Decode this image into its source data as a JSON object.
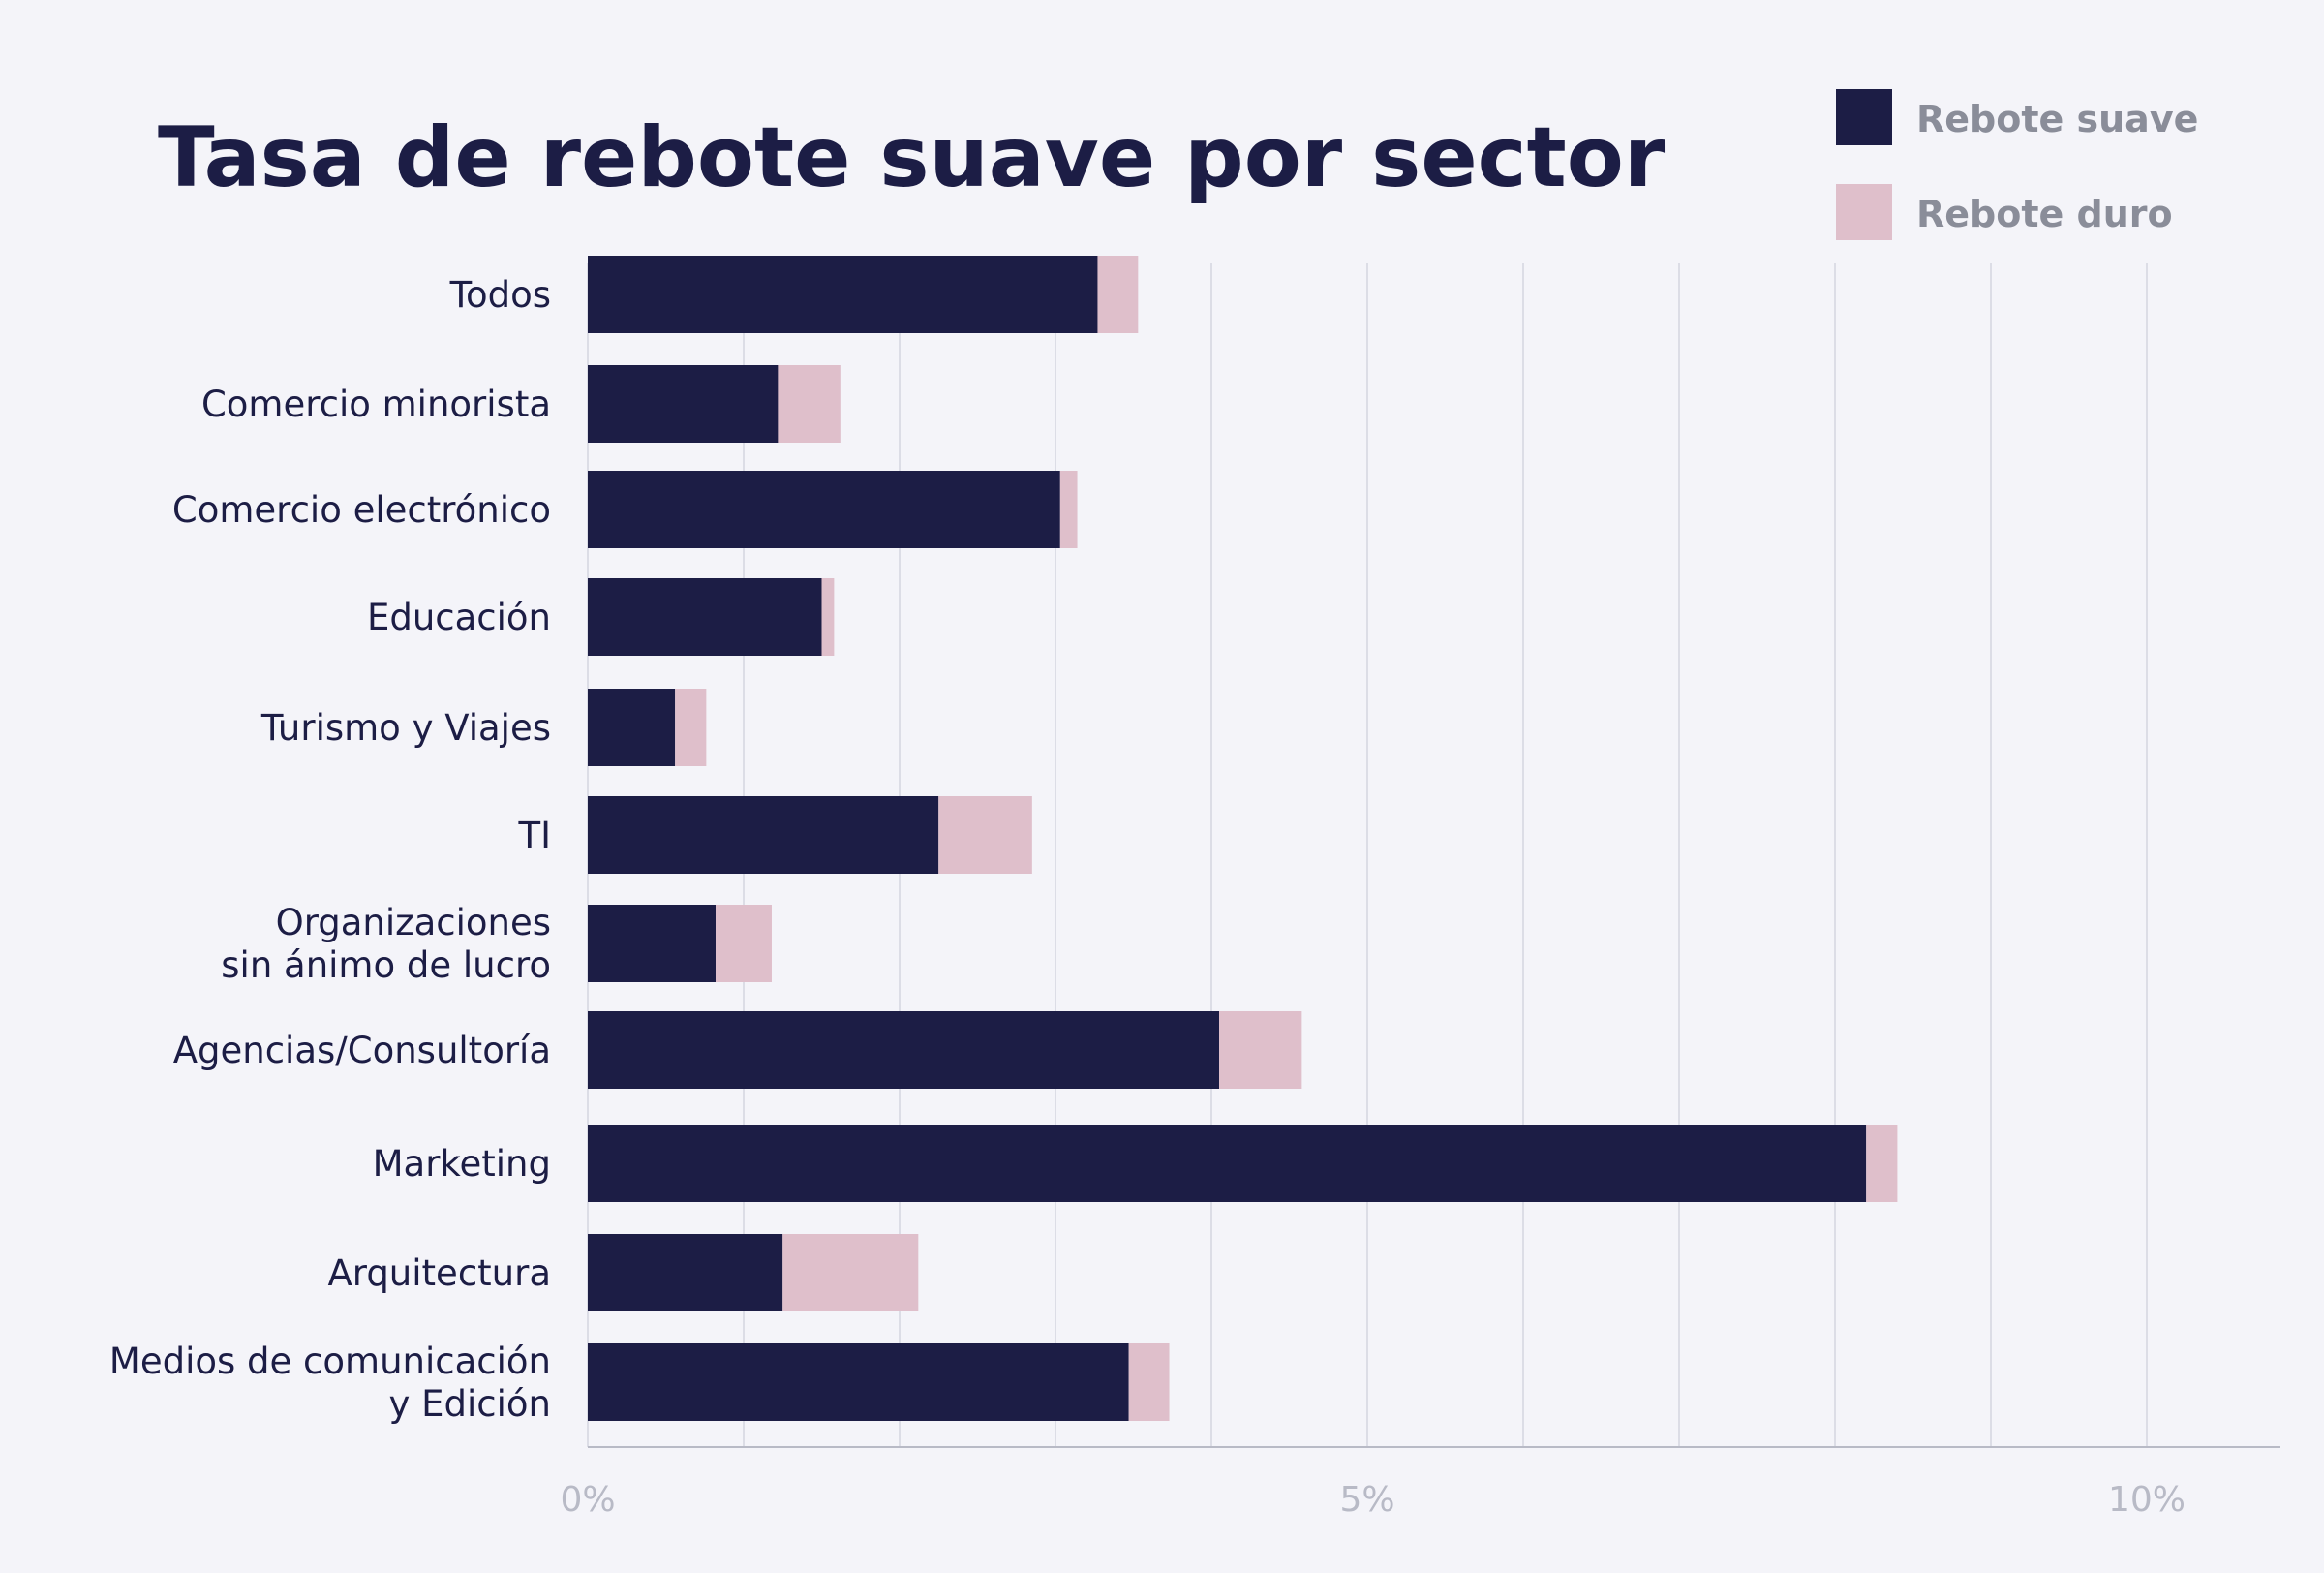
{
  "chart_data": {
    "type": "bar",
    "orientation": "horizontal",
    "stacked": true,
    "title": "Tasa de rebote suave por sector",
    "categories": [
      [
        "Todos"
      ],
      [
        "Comercio minorista"
      ],
      [
        "Comercio electrónico"
      ],
      [
        "Educación"
      ],
      [
        "Turismo y Viajes"
      ],
      [
        "TI"
      ],
      [
        "Organizaciones",
        "sin ánimo de lucro"
      ],
      [
        "Agencias/Consultoría"
      ],
      [
        "Marketing"
      ],
      [
        "Arquitectura"
      ],
      [
        "Medios de comunicación",
        "y Edición"
      ]
    ],
    "series": [
      {
        "name": "Rebote suave",
        "color": "#1c1d45",
        "values": [
          3.27,
          1.22,
          3.03,
          1.5,
          0.56,
          2.25,
          0.82,
          4.05,
          8.2,
          1.25,
          3.47
        ]
      },
      {
        "name": "Rebote duro",
        "color": "#dfbfcb",
        "values": [
          0.26,
          0.4,
          0.11,
          0.08,
          0.2,
          0.6,
          0.36,
          0.53,
          0.2,
          0.87,
          0.26
        ]
      }
    ],
    "xlim": [
      0,
      10.5
    ],
    "xticks": [
      {
        "value": 0,
        "label": "0%"
      },
      {
        "value": 5,
        "label": "5%"
      },
      {
        "value": 10,
        "label": "10%"
      }
    ],
    "gridlines": [
      0,
      1,
      2,
      3,
      4,
      5,
      6,
      7,
      8,
      9,
      10
    ],
    "grid": true,
    "legend_position": "top-right"
  }
}
